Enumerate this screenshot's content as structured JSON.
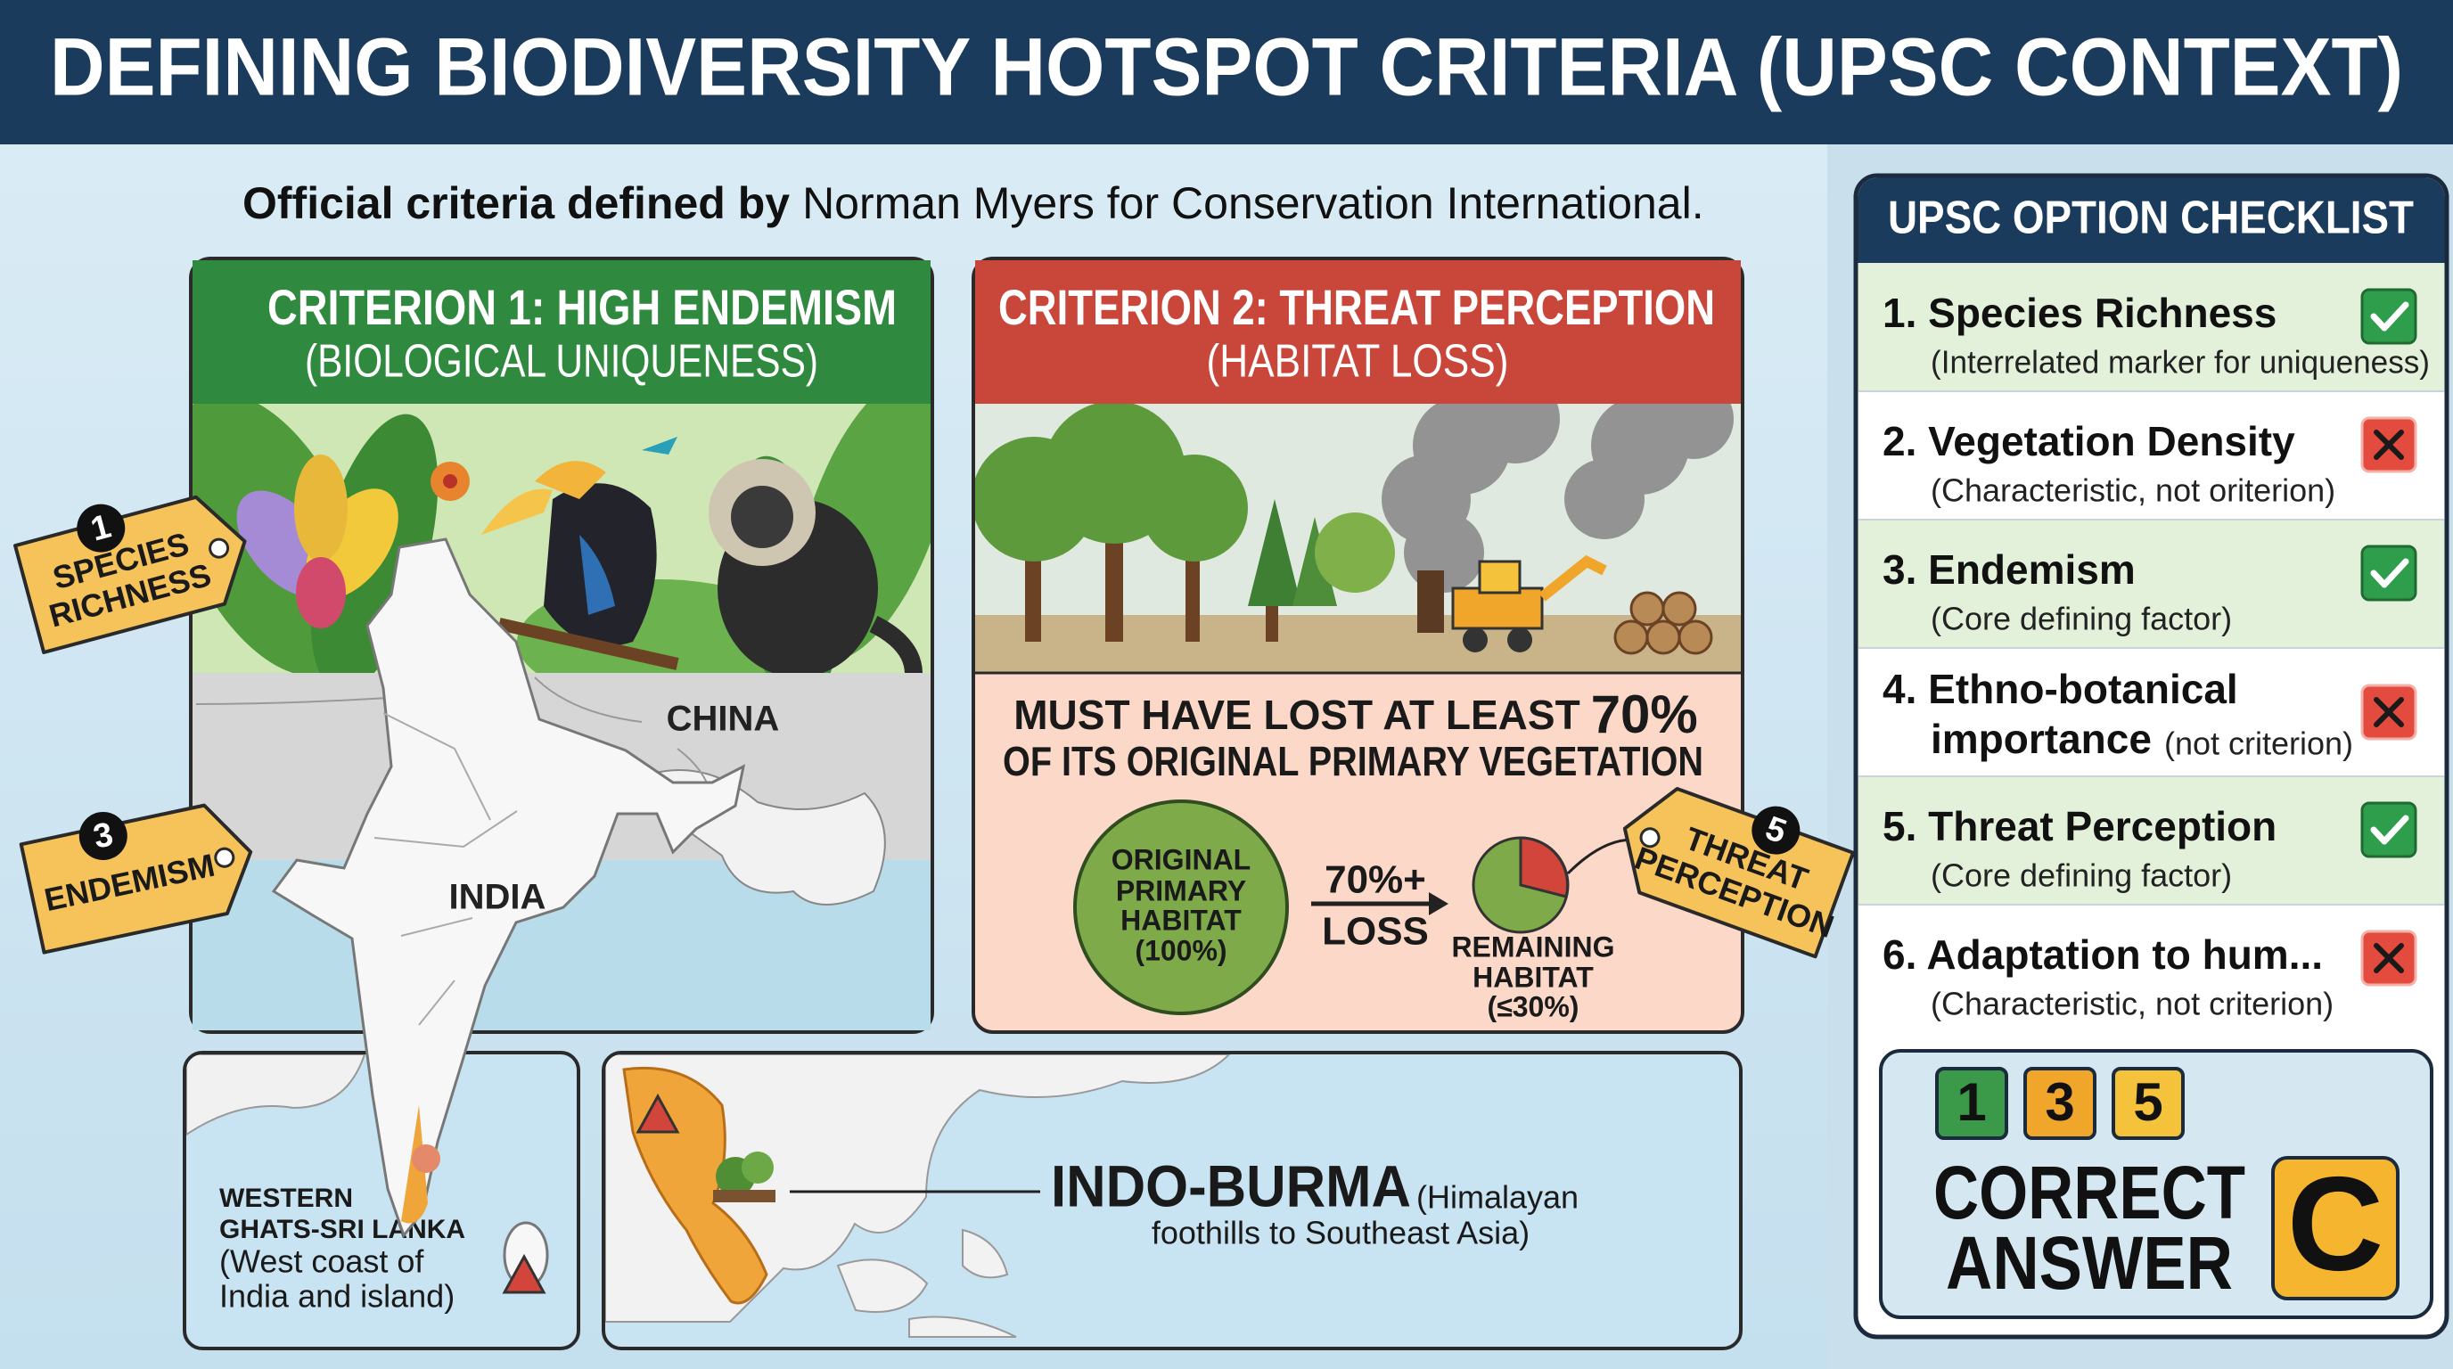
{
  "header": {
    "title": "DEFINING BIODIVERSITY HOTSPOT CRITERIA (UPSC CONTEXT)"
  },
  "intro": {
    "bold": "Official criteria defined by",
    "text": "Norman Myers for Conservation International."
  },
  "criterion_1": {
    "title": "CRITERION 1: HIGH ENDEMISM",
    "subtitle": "(BIOLOGICAL UNIQUENESS)",
    "map_labels": [
      "CHINA",
      "INDIA"
    ]
  },
  "criterion_2": {
    "title": "CRITERION 2: THREAT PERCEPTION",
    "subtitle": "(HABITAT LOSS)",
    "requirement": {
      "prefix": "MUST HAVE LOST AT LEAST",
      "highlight": "70%",
      "rest": "OF ITS ORIGINAL PRIMARY VEGETATION"
    },
    "original_habitat": [
      "ORIGINAL",
      "PRIMARY",
      "HABITAT",
      "(100%)"
    ],
    "loss": [
      "70%+",
      "LOSS"
    ],
    "remaining_habitat": [
      "REMAINING",
      "HABITAT",
      "(≤30%)"
    ]
  },
  "tags": [
    {
      "number": "1",
      "text": [
        "SPECIES",
        "RICHNESS"
      ]
    },
    {
      "number": "3",
      "text": [
        "ENDEMISM"
      ]
    },
    {
      "number": "5",
      "text": [
        "THREAT",
        "PERCEPTION"
      ]
    }
  ],
  "regions": {
    "western_ghats": {
      "name": [
        "WESTERN",
        "GHATS-SRI LANKA"
      ],
      "description": [
        "(West coast of",
        "India and island)"
      ]
    },
    "indo_burma": {
      "name": "INDO-BURMA",
      "description": [
        "(Himalayan",
        "foothills to Southeast Asia)"
      ]
    }
  },
  "checklist": {
    "title": "UPSC OPTION CHECKLIST",
    "items": [
      {
        "label": "1. Species Richness",
        "note": "(Interrelated marker for uniqueness)",
        "correct": true
      },
      {
        "label": "2. Vegetation Density",
        "note": "(Characteristic, not oriterion)",
        "correct": false
      },
      {
        "label": "3. Endemism",
        "note": "(Core defining factor)",
        "correct": true
      },
      {
        "label": [
          "4. Ethno-botanical",
          "importance"
        ],
        "note": "(not criterion)",
        "correct": false
      },
      {
        "label": "5. Threat Perception",
        "note": "(Core defining factor)",
        "correct": true
      },
      {
        "label": "6. Adaptation to hum...",
        "note": "(Characteristic, not criterion)",
        "correct": false
      }
    ]
  },
  "answer": {
    "options": [
      "1",
      "3",
      "5"
    ],
    "label": [
      "CORRECT",
      "ANSWER"
    ],
    "letter": "C"
  }
}
